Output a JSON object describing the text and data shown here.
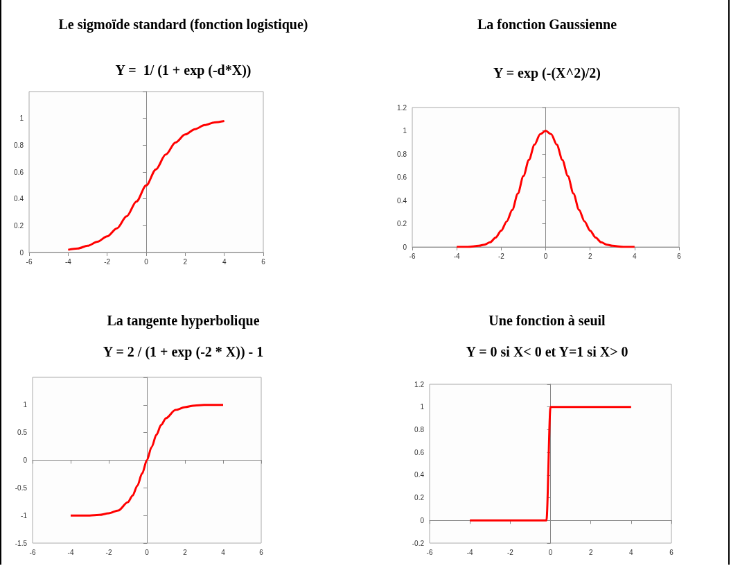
{
  "chart_data": [
    {
      "type": "line",
      "title": "Le sigmoïde standard (fonction logistique)",
      "subtitle": "Y =  1/ (1 + exp (-d*X))",
      "x": [
        -4,
        -3.5,
        -3,
        -2.5,
        -2,
        -1.5,
        -1,
        -0.5,
        0,
        0.5,
        1,
        1.5,
        2,
        2.5,
        3,
        3.5,
        4
      ],
      "values": [
        0.02,
        0.03,
        0.05,
        0.08,
        0.12,
        0.18,
        0.27,
        0.38,
        0.5,
        0.62,
        0.73,
        0.82,
        0.88,
        0.92,
        0.95,
        0.97,
        0.98
      ],
      "color": "#ff0000",
      "xlim": [
        -6,
        6
      ],
      "xticks": [
        -6,
        -4,
        -2,
        0,
        2,
        4,
        6
      ],
      "ylim": [
        0,
        1.2
      ],
      "yticks": [
        0,
        0.2,
        0.4,
        0.6,
        0.8,
        1,
        {
          "value": 1.2,
          "label": null
        }
      ]
    },
    {
      "type": "line",
      "title": "La fonction Gaussienne",
      "subtitle": "Y = exp (-(X^2)/2)",
      "x": [
        -4,
        -3.5,
        -3,
        -2.75,
        -2.5,
        -2.25,
        -2,
        -1.75,
        -1.5,
        -1.25,
        -1,
        -0.75,
        -0.5,
        -0.25,
        0,
        0.25,
        0.5,
        0.75,
        1,
        1.25,
        1.5,
        1.75,
        2,
        2.25,
        2.5,
        2.75,
        3,
        3.5,
        4
      ],
      "values": [
        0,
        0,
        0.01,
        0.02,
        0.04,
        0.08,
        0.14,
        0.22,
        0.32,
        0.46,
        0.61,
        0.75,
        0.88,
        0.97,
        1,
        0.97,
        0.88,
        0.75,
        0.61,
        0.46,
        0.32,
        0.22,
        0.14,
        0.08,
        0.04,
        0.02,
        0.01,
        0,
        0
      ],
      "color": "#ff0000",
      "xlim": [
        -6,
        6
      ],
      "xticks": [
        -6,
        -4,
        -2,
        0,
        2,
        4,
        6
      ],
      "ylim": [
        0,
        1.2
      ],
      "yticks": [
        0,
        0.2,
        0.4,
        0.6,
        0.8,
        1,
        1.2
      ]
    },
    {
      "type": "line",
      "title": "La tangente hyperbolique",
      "subtitle": "Y = 2 / (1 + exp (-2 * X)) - 1",
      "x": [
        -4,
        -3.5,
        -3,
        -2.5,
        -2,
        -1.5,
        -1,
        -0.75,
        -0.5,
        -0.25,
        0,
        0.25,
        0.5,
        0.75,
        1,
        1.5,
        2,
        2.5,
        3,
        3.5,
        4
      ],
      "values": [
        -1,
        -1,
        -1,
        -0.99,
        -0.96,
        -0.91,
        -0.76,
        -0.64,
        -0.46,
        -0.24,
        0,
        0.24,
        0.46,
        0.64,
        0.76,
        0.91,
        0.96,
        0.99,
        1,
        1,
        1
      ],
      "color": "#ff0000",
      "xlim": [
        -6,
        6
      ],
      "xticks": [
        -6,
        -4,
        -2,
        0,
        2,
        4,
        6
      ],
      "ylim": [
        -1.5,
        1.5
      ],
      "yticks": [
        -1.5,
        -1,
        -0.5,
        0,
        0.5,
        1,
        {
          "value": 1.5,
          "label": null
        }
      ]
    },
    {
      "type": "line",
      "title": "Une fonction à seuil",
      "subtitle": "Y = 0 si X< 0 et Y=1 si X> 0",
      "x": [
        -4,
        -0.2,
        0,
        4
      ],
      "values": [
        0,
        0,
        1,
        1
      ],
      "color": "#ff0000",
      "xlim": [
        -6,
        6
      ],
      "xticks": [
        -6,
        -4,
        -2,
        0,
        2,
        4,
        6
      ],
      "ylim": [
        -0.2,
        1.2
      ],
      "yticks": [
        -0.2,
        0,
        0.2,
        0.4,
        0.6,
        0.8,
        1,
        1.2
      ]
    }
  ]
}
